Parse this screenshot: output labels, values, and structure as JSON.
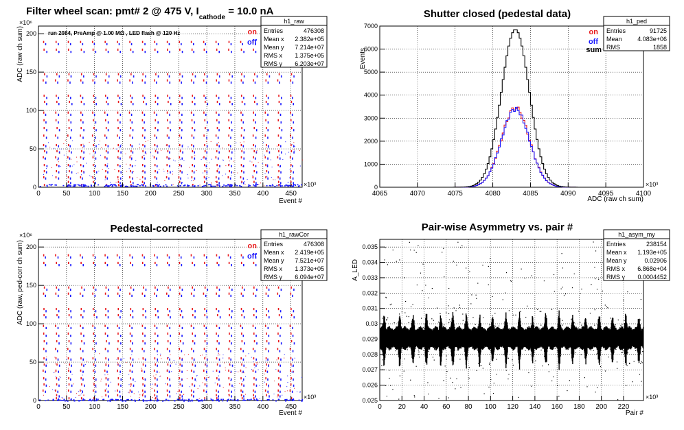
{
  "page": {
    "title_main": "Filter wheel scan: pmt#   2 @   475 V, I",
    "title_sub": "cathode",
    "title_tail": " = 10.0 nA"
  },
  "panels": {
    "raw": {
      "run_info": "run 2084, PreAmp @ 1.00 MΩ , LED flash @  120 Hz",
      "legend": [
        "on",
        "off"
      ]
    },
    "ped": {
      "title": "Shutter closed (pedestal data)",
      "legend": [
        "on",
        "off",
        "sum"
      ]
    },
    "cor": {
      "title": "Pedestal-corrected",
      "legend": [
        "on",
        "off"
      ]
    },
    "asym": {
      "title": "Pair-wise Asymmetry vs. pair #"
    }
  },
  "stats": {
    "raw": {
      "name": "h1_raw",
      "rows": [
        [
          "Entries",
          "476308"
        ],
        [
          "Mean x",
          "2.382e+05"
        ],
        [
          "Mean y",
          "7.214e+07"
        ],
        [
          "RMS x",
          "1.375e+05"
        ],
        [
          "RMS y",
          "6.203e+07"
        ]
      ]
    },
    "ped": {
      "name": "h1_ped",
      "rows": [
        [
          "Entries",
          "91725"
        ],
        [
          "Mean",
          "4.083e+06"
        ],
        [
          "RMS",
          "1858"
        ]
      ]
    },
    "cor": {
      "name": "h1_rawCor",
      "rows": [
        [
          "Entries",
          "476308"
        ],
        [
          "Mean x",
          "2.419e+05"
        ],
        [
          "Mean y",
          "7.521e+07"
        ],
        [
          "RMS x",
          "1.373e+05"
        ],
        [
          "RMS y",
          "6.094e+07"
        ]
      ]
    },
    "asym": {
      "name": "h1_asym_my",
      "rows": [
        [
          "Entries",
          "238154"
        ],
        [
          "Mean x",
          "1.193e+05"
        ],
        [
          "Mean y",
          "0.02906"
        ],
        [
          "RMS x",
          "6.868e+04"
        ],
        [
          "RMS y",
          "0.0004452"
        ]
      ]
    }
  },
  "colors": {
    "on": "#e8191c",
    "off": "#1a1aff",
    "sum": "#000000",
    "grid": "#000000"
  },
  "chart_data": [
    {
      "id": "raw",
      "type": "scatter",
      "xlabel": "Event #",
      "ylabel": "ADC (raw ch sum)",
      "x_exponent": "×10³",
      "y_exponent": "×10⁶",
      "xlim": [
        0,
        470
      ],
      "ylim": [
        0,
        210
      ],
      "xticks": [
        0,
        50,
        100,
        150,
        200,
        250,
        300,
        350,
        400,
        450
      ],
      "yticks": [
        0,
        50,
        100,
        150,
        200
      ],
      "scan_levels": [
        190,
        180,
        148,
        140,
        120,
        112,
        98,
        88,
        78,
        68,
        56,
        48,
        40,
        30,
        22,
        14,
        8,
        4
      ],
      "baseline": 3
    },
    {
      "id": "ped",
      "type": "histogram",
      "xlabel": "ADC (raw ch sum)",
      "ylabel": "Events",
      "x_exponent": "×10³",
      "xlim": [
        4065,
        4100
      ],
      "ylim": [
        0,
        7000
      ],
      "xticks": [
        4065,
        4070,
        4075,
        4080,
        4085,
        4090,
        4095,
        4100
      ],
      "yticks": [
        0,
        1000,
        2000,
        3000,
        4000,
        5000,
        6000,
        7000
      ],
      "center": 4083.0,
      "sigma": 1.86,
      "series": [
        {
          "name": "on",
          "peak": 3450
        },
        {
          "name": "off",
          "peak": 3400
        },
        {
          "name": "sum",
          "peak": 6850
        }
      ]
    },
    {
      "id": "cor",
      "type": "scatter",
      "xlabel": "Event #",
      "ylabel": "ADC (raw, ped-corr ch sum)",
      "x_exponent": "×10³",
      "y_exponent": "×10⁶",
      "xlim": [
        0,
        470
      ],
      "ylim": [
        0,
        210
      ],
      "xticks": [
        0,
        50,
        100,
        150,
        200,
        250,
        300,
        350,
        400,
        450
      ],
      "yticks": [
        0,
        50,
        100,
        150,
        200
      ],
      "scan_levels": [
        190,
        180,
        148,
        140,
        120,
        112,
        98,
        88,
        78,
        68,
        56,
        48,
        40,
        30,
        22,
        14,
        8,
        4
      ],
      "baseline": 1
    },
    {
      "id": "asym",
      "type": "scatter",
      "xlabel": "Pair #",
      "ylabel": "A_LED",
      "x_exponent": "×10³",
      "xlim": [
        0,
        238
      ],
      "ylim": [
        0.025,
        0.0355
      ],
      "xticks": [
        0,
        20,
        40,
        60,
        80,
        100,
        120,
        140,
        160,
        180,
        200,
        220
      ],
      "yticks": [
        0.025,
        0.026,
        0.027,
        0.028,
        0.029,
        0.03,
        0.031,
        0.032,
        0.033,
        0.034,
        0.035
      ],
      "band_center": 0.02906,
      "band_halfwidth": 0.0007,
      "spikes": [
        4,
        18,
        30,
        42,
        55,
        66,
        78,
        90,
        102,
        114,
        126,
        138,
        150,
        162,
        174,
        186,
        198,
        210,
        222,
        234
      ]
    }
  ]
}
